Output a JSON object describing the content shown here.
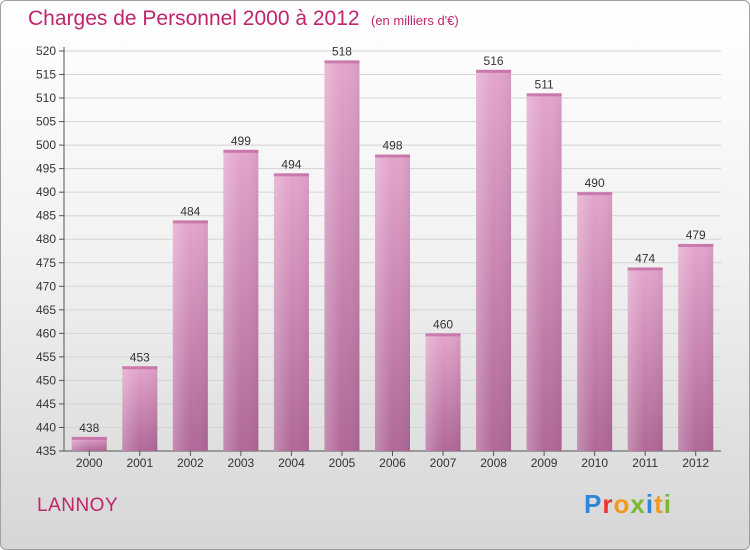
{
  "title": "Charges de Personnel 2000 à 2012",
  "subtitle": "(en milliers d'€)",
  "commune": "LANNOY",
  "logo": {
    "letters": [
      "P",
      "r",
      "o",
      "x",
      "i",
      "t",
      "i"
    ],
    "colors": [
      "#2f86d6",
      "#e8372f",
      "#f39a1e",
      "#7ab92f",
      "#2f86d6",
      "#f39a1e",
      "#7ab92f"
    ]
  },
  "colors": {
    "title": "#c0246c",
    "bar_top": "#e3a5cc",
    "bar_bottom": "#b06898",
    "grid": "#d4d4d4"
  },
  "chart_data": {
    "type": "bar",
    "categories": [
      "2000",
      "2001",
      "2002",
      "2003",
      "2004",
      "2005",
      "2006",
      "2007",
      "2008",
      "2009",
      "2010",
      "2011",
      "2012"
    ],
    "values": [
      438,
      453,
      484,
      499,
      494,
      518,
      498,
      460,
      516,
      511,
      490,
      474,
      479
    ],
    "ylim": [
      435,
      520
    ],
    "yticks": [
      435,
      440,
      445,
      450,
      455,
      460,
      465,
      470,
      475,
      480,
      485,
      490,
      495,
      500,
      505,
      510,
      515,
      520
    ],
    "grid": true,
    "data_labels": true
  }
}
